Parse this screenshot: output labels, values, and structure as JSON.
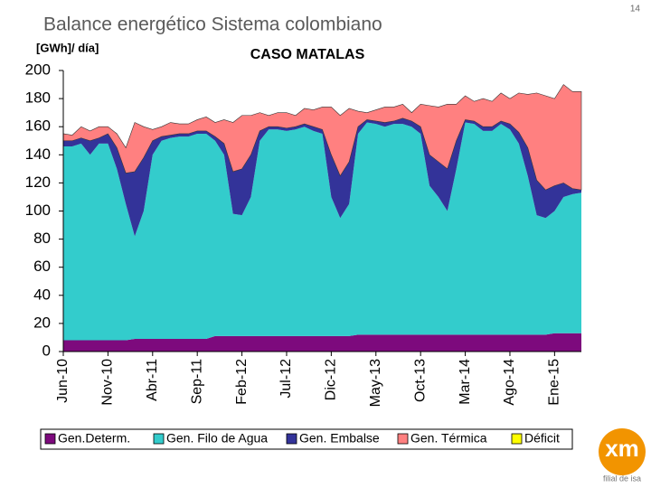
{
  "slide": {
    "title": "Balance energético Sistema colombiano",
    "page_number": "14",
    "logo": "xm",
    "logo_caption": "filial de isa"
  },
  "chart_data": {
    "type": "stacked_area",
    "title": "CASO MATALAS",
    "y_label": "[GWh]/ día]",
    "categories": [
      "Jun-10",
      null,
      null,
      null,
      null,
      "Nov-10",
      null,
      null,
      null,
      null,
      "Abr-11",
      null,
      null,
      null,
      null,
      "Sep-11",
      null,
      null,
      null,
      null,
      "Feb-12",
      null,
      null,
      null,
      null,
      "Jul-12",
      null,
      null,
      null,
      null,
      "Dic-12",
      null,
      null,
      null,
      null,
      "May-13",
      null,
      null,
      null,
      null,
      "Oct-13",
      null,
      null,
      null,
      null,
      "Mar-14",
      null,
      null,
      null,
      null,
      "Ago-14",
      null,
      null,
      null,
      null,
      "Ene-15",
      null,
      null,
      null
    ],
    "ylim": [
      0,
      200
    ],
    "yticks": [
      0,
      20,
      40,
      60,
      80,
      100,
      120,
      140,
      160,
      180,
      200
    ],
    "grid": false,
    "legend": "bottom",
    "series": [
      {
        "name": "Gen.Determ.",
        "color": "#7d0a7d",
        "values": [
          8,
          8,
          8,
          8,
          8,
          8,
          8,
          8,
          9,
          9,
          9,
          9,
          9,
          9,
          9,
          9,
          9,
          11,
          11,
          11,
          11,
          11,
          11,
          11,
          11,
          11,
          11,
          11,
          11,
          11,
          11,
          11,
          11,
          12,
          12,
          12,
          12,
          12,
          12,
          12,
          12,
          12,
          12,
          12,
          12,
          12,
          12,
          12,
          12,
          12,
          12,
          12,
          12,
          12,
          12,
          13,
          13,
          13,
          13
        ]
      },
      {
        "name": "Gen. Filo de Agua",
        "color": "#33cccc",
        "values": [
          138,
          138,
          140,
          132,
          140,
          140,
          122,
          97,
          73,
          91,
          131,
          141,
          143,
          144,
          144,
          146,
          146,
          139,
          129,
          87,
          86,
          99,
          139,
          147,
          147,
          146,
          147,
          149,
          146,
          144,
          99,
          84,
          94,
          143,
          151,
          150,
          148,
          150,
          150,
          148,
          143,
          106,
          98,
          88,
          118,
          151,
          150,
          145,
          145,
          150,
          146,
          136,
          113,
          85,
          83,
          87,
          97,
          99,
          100
        ]
      },
      {
        "name": "Gen. Embalse",
        "color": "#333399",
        "values": [
          4,
          4,
          4,
          10,
          4,
          7,
          15,
          22,
          46,
          38,
          10,
          3,
          2,
          2,
          2,
          2,
          2,
          3,
          8,
          30,
          33,
          30,
          7,
          2,
          2,
          2,
          2,
          2,
          3,
          3,
          30,
          30,
          30,
          5,
          2,
          2,
          3,
          2,
          4,
          4,
          5,
          22,
          25,
          30,
          20,
          2,
          2,
          3,
          3,
          2,
          4,
          8,
          20,
          25,
          20,
          18,
          10,
          4,
          2
        ]
      },
      {
        "name": "Gen. Térmica",
        "color": "#ff8080",
        "values": [
          5,
          4,
          8,
          7,
          8,
          5,
          10,
          18,
          35,
          22,
          8,
          7,
          9,
          7,
          7,
          8,
          10,
          10,
          17,
          35,
          38,
          28,
          13,
          8,
          10,
          11,
          8,
          11,
          12,
          16,
          34,
          43,
          38,
          11,
          5,
          8,
          11,
          10,
          10,
          6,
          16,
          35,
          39,
          46,
          26,
          17,
          14,
          20,
          18,
          20,
          18,
          28,
          38,
          62,
          67,
          62,
          70,
          69,
          70
        ]
      },
      {
        "name": "Déficit",
        "color": "#ffff00",
        "values": [
          0,
          0,
          0,
          0,
          0,
          0,
          0,
          0,
          0,
          0,
          0,
          0,
          0,
          0,
          0,
          0,
          0,
          0,
          0,
          0,
          0,
          0,
          0,
          0,
          0,
          0,
          0,
          0,
          0,
          0,
          0,
          0,
          0,
          0,
          0,
          0,
          0,
          0,
          0,
          0,
          0,
          0,
          0,
          0,
          0,
          0,
          0,
          0,
          0,
          0,
          0,
          0,
          0,
          0,
          0,
          0,
          0,
          0,
          0
        ]
      }
    ]
  }
}
